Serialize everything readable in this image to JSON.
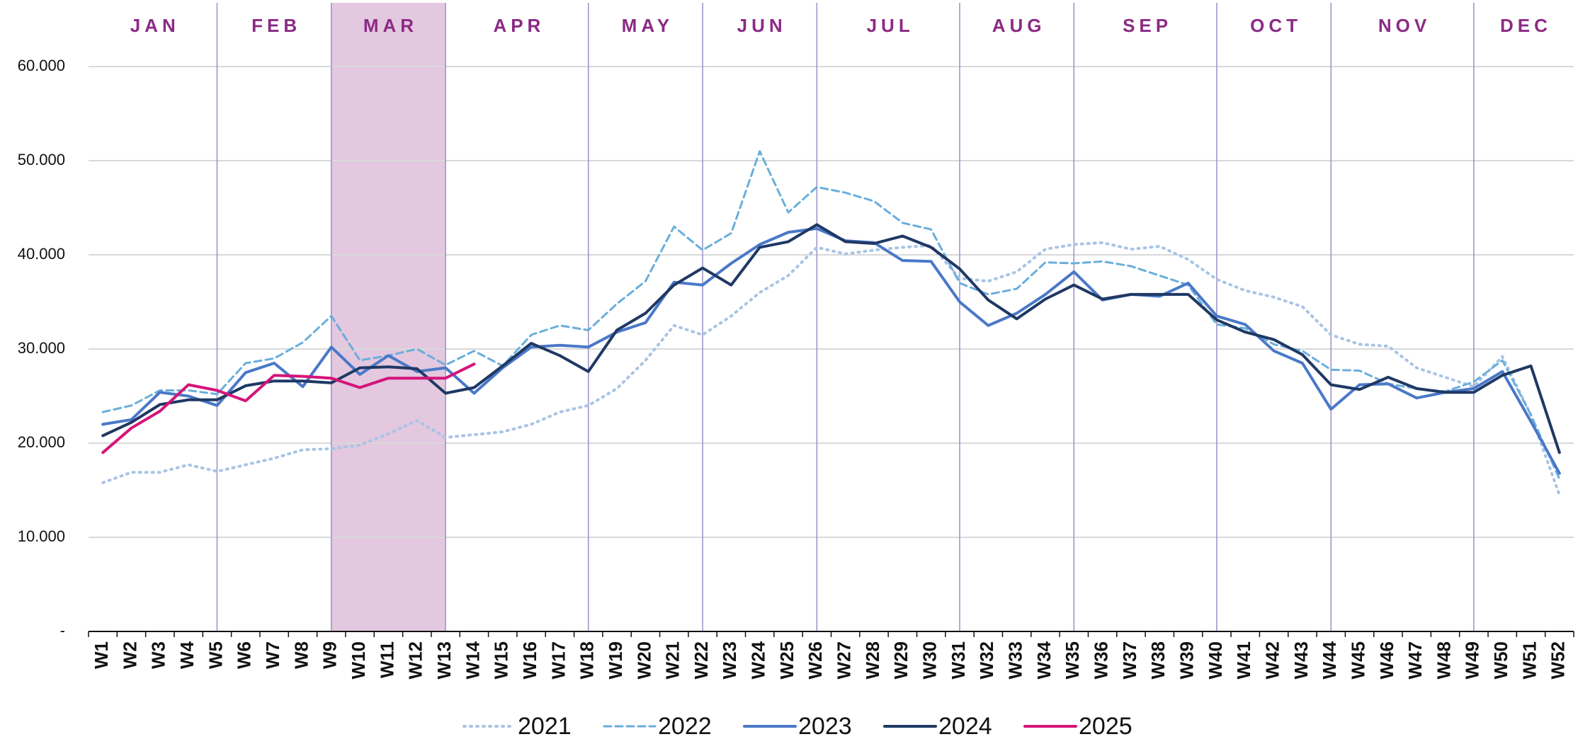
{
  "chart_data": {
    "type": "line",
    "categories": [
      "W1",
      "W2",
      "W3",
      "W4",
      "W5",
      "W6",
      "W7",
      "W8",
      "W9",
      "W10",
      "W11",
      "W12",
      "W13",
      "W14",
      "W15",
      "W16",
      "W17",
      "W18",
      "W19",
      "W20",
      "W21",
      "W22",
      "W23",
      "W24",
      "W25",
      "W26",
      "W27",
      "W28",
      "W29",
      "W30",
      "W31",
      "W32",
      "W33",
      "W34",
      "W35",
      "W36",
      "W37",
      "W38",
      "W39",
      "W40",
      "W41",
      "W42",
      "W43",
      "W44",
      "W45",
      "W46",
      "W47",
      "W48",
      "W49",
      "W50",
      "W51",
      "W52"
    ],
    "months": [
      "JAN",
      "FEB",
      "MAR",
      "APR",
      "MAY",
      "JUN",
      "JUL",
      "AUG",
      "SEP",
      "OCT",
      "NOV",
      "DEC"
    ],
    "month_ends": [
      "W5",
      "W9",
      "W13",
      "W18",
      "W22",
      "W26",
      "W31",
      "W35",
      "W40",
      "W44",
      "W49",
      "W52"
    ],
    "highlight": "MAR",
    "ylim": [
      0,
      60000
    ],
    "yticks": [
      {
        "value": 0,
        "label": "-"
      },
      {
        "value": 10000,
        "label": "10.000"
      },
      {
        "value": 20000,
        "label": "20.000"
      },
      {
        "value": 30000,
        "label": "30.000"
      },
      {
        "value": 40000,
        "label": "40.000"
      },
      {
        "value": 50000,
        "label": "50.000"
      },
      {
        "value": 60000,
        "label": "60.000"
      }
    ],
    "grid": true,
    "legend": "bottom",
    "series": [
      {
        "name": "2021",
        "color": "#a9c4e4",
        "style": "dotted",
        "values": [
          15800,
          16900,
          16900,
          17700,
          17000,
          17700,
          18400,
          19300,
          19400,
          19800,
          21000,
          22400,
          20600,
          20900,
          21200,
          22000,
          23300,
          24000,
          25800,
          28800,
          32500,
          31500,
          33500,
          36000,
          37800,
          40800,
          40100,
          40500,
          40800,
          41000,
          37500,
          37200,
          38200,
          40600,
          41100,
          41300,
          40600,
          40900,
          39500,
          37400,
          36200,
          35500,
          34500,
          31500,
          30500,
          30300,
          28000,
          27000,
          26000,
          29200,
          23000,
          14500
        ]
      },
      {
        "name": "2022",
        "color": "#6aaedb",
        "style": "dashed",
        "values": [
          23300,
          24000,
          25600,
          25600,
          25200,
          28500,
          29000,
          30700,
          33500,
          28800,
          29300,
          30000,
          28300,
          29800,
          28200,
          31500,
          32500,
          32000,
          34800,
          37200,
          43000,
          40500,
          42300,
          51000,
          44500,
          47200,
          46600,
          45700,
          43400,
          42700,
          37000,
          35800,
          36400,
          39200,
          39100,
          39300,
          38800,
          37800,
          36800,
          32600,
          32200,
          30500,
          29800,
          27800,
          27700,
          26300,
          25800,
          25500,
          26500,
          28800,
          23000,
          16200
        ]
      },
      {
        "name": "2023",
        "color": "#4a78c8",
        "style": "solid",
        "values": [
          22000,
          22500,
          25400,
          25000,
          24000,
          27500,
          28500,
          26000,
          30200,
          27300,
          29300,
          27600,
          28000,
          25300,
          28000,
          30200,
          30400,
          30200,
          31800,
          32800,
          37100,
          36800,
          39100,
          41100,
          42400,
          42800,
          41500,
          41300,
          39400,
          39300,
          35000,
          32500,
          33800,
          35800,
          38200,
          35200,
          35800,
          35600,
          37000,
          33500,
          32600,
          29800,
          28500,
          23600,
          26200,
          26300,
          24800,
          25400,
          25800,
          27600,
          22300,
          16800
        ]
      },
      {
        "name": "2024",
        "color": "#1f3864",
        "style": "solid",
        "values": [
          20800,
          22200,
          24100,
          24600,
          24600,
          26100,
          26600,
          26600,
          26400,
          28000,
          28100,
          27900,
          25300,
          25900,
          28200,
          30600,
          29300,
          27600,
          32000,
          33800,
          36800,
          38600,
          36800,
          40800,
          41400,
          43200,
          41400,
          41200,
          42000,
          40800,
          38500,
          35200,
          33200,
          35300,
          36800,
          35300,
          35800,
          35800,
          35800,
          33100,
          31800,
          31000,
          29400,
          26200,
          25700,
          27000,
          25800,
          25400,
          25400,
          27200,
          28200,
          19000
        ]
      },
      {
        "name": "2025",
        "color": "#d4147a",
        "style": "solid",
        "values": [
          19000,
          21600,
          23400,
          26200,
          25600,
          24500,
          27200,
          27100,
          26900,
          25900,
          26900,
          26900,
          26900,
          28400,
          null,
          null,
          null,
          null,
          null,
          null,
          null,
          null,
          null,
          null,
          null,
          null,
          null,
          null,
          null,
          null,
          null,
          null,
          null,
          null,
          null,
          null,
          null,
          null,
          null,
          null,
          null,
          null,
          null,
          null,
          null,
          null,
          null,
          null,
          null,
          null,
          null,
          null
        ]
      }
    ]
  }
}
